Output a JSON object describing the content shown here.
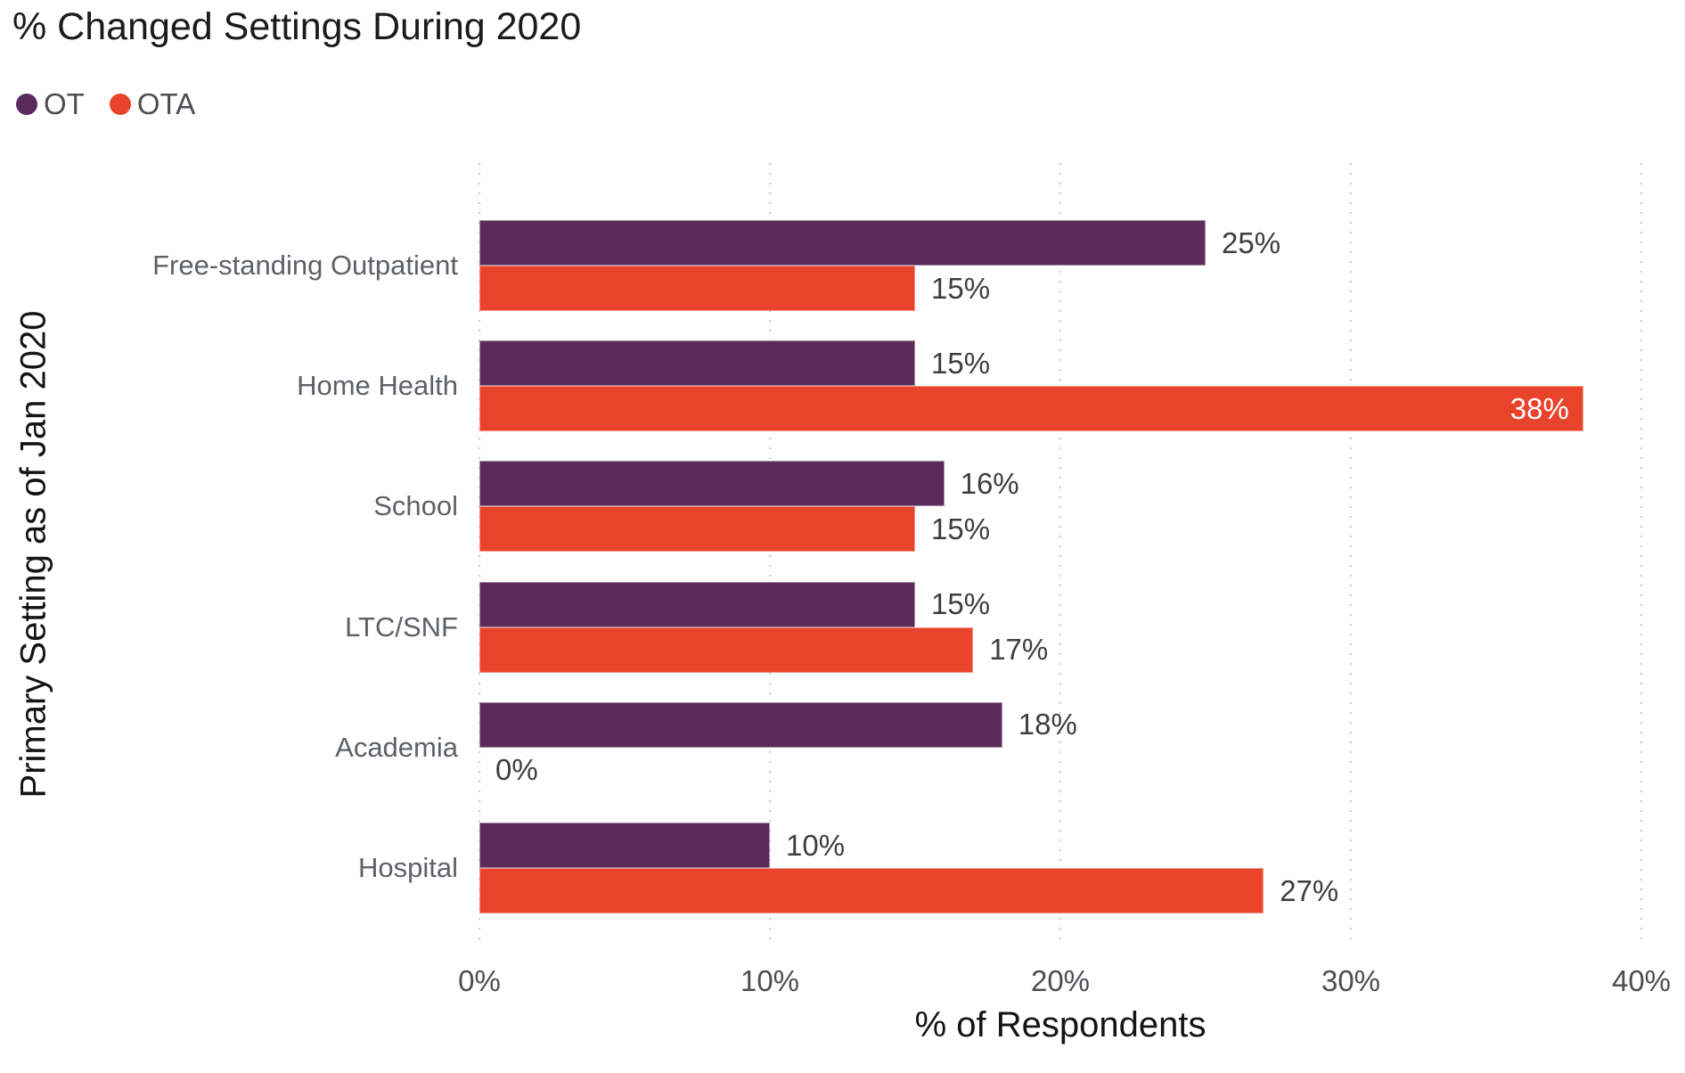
{
  "title": "% Changed Settings During 2020",
  "legend": [
    {
      "label": "OT",
      "color": "#5b2b5d"
    },
    {
      "label": "OTA",
      "color": "#e9432b"
    }
  ],
  "chart_data": {
    "type": "bar",
    "orientation": "horizontal",
    "title": "% Changed Settings During 2020",
    "xlabel": "% of Respondents",
    "ylabel": "Primary Setting as of Jan 2020",
    "categories": [
      "Free-standing Outpatient",
      "Home Health",
      "School",
      "LTC/SNF",
      "Academia",
      "Hospital"
    ],
    "series": [
      {
        "name": "OT",
        "color": "#5b2b5d",
        "values": [
          25,
          15,
          16,
          15,
          18,
          10
        ],
        "labels": [
          "25%",
          "15%",
          "16%",
          "15%",
          "18%",
          "10%"
        ]
      },
      {
        "name": "OTA",
        "color": "#e9432b",
        "values": [
          15,
          38,
          15,
          17,
          0,
          27
        ],
        "labels": [
          "15%",
          "38%",
          "15%",
          "17%",
          "0%",
          "27%"
        ]
      }
    ],
    "xlim": [
      0,
      40
    ],
    "x_ticks": [
      "0%",
      "10%",
      "20%",
      "30%",
      "40%"
    ],
    "grid": "dotted-vertical",
    "legend_position": "top-left"
  }
}
